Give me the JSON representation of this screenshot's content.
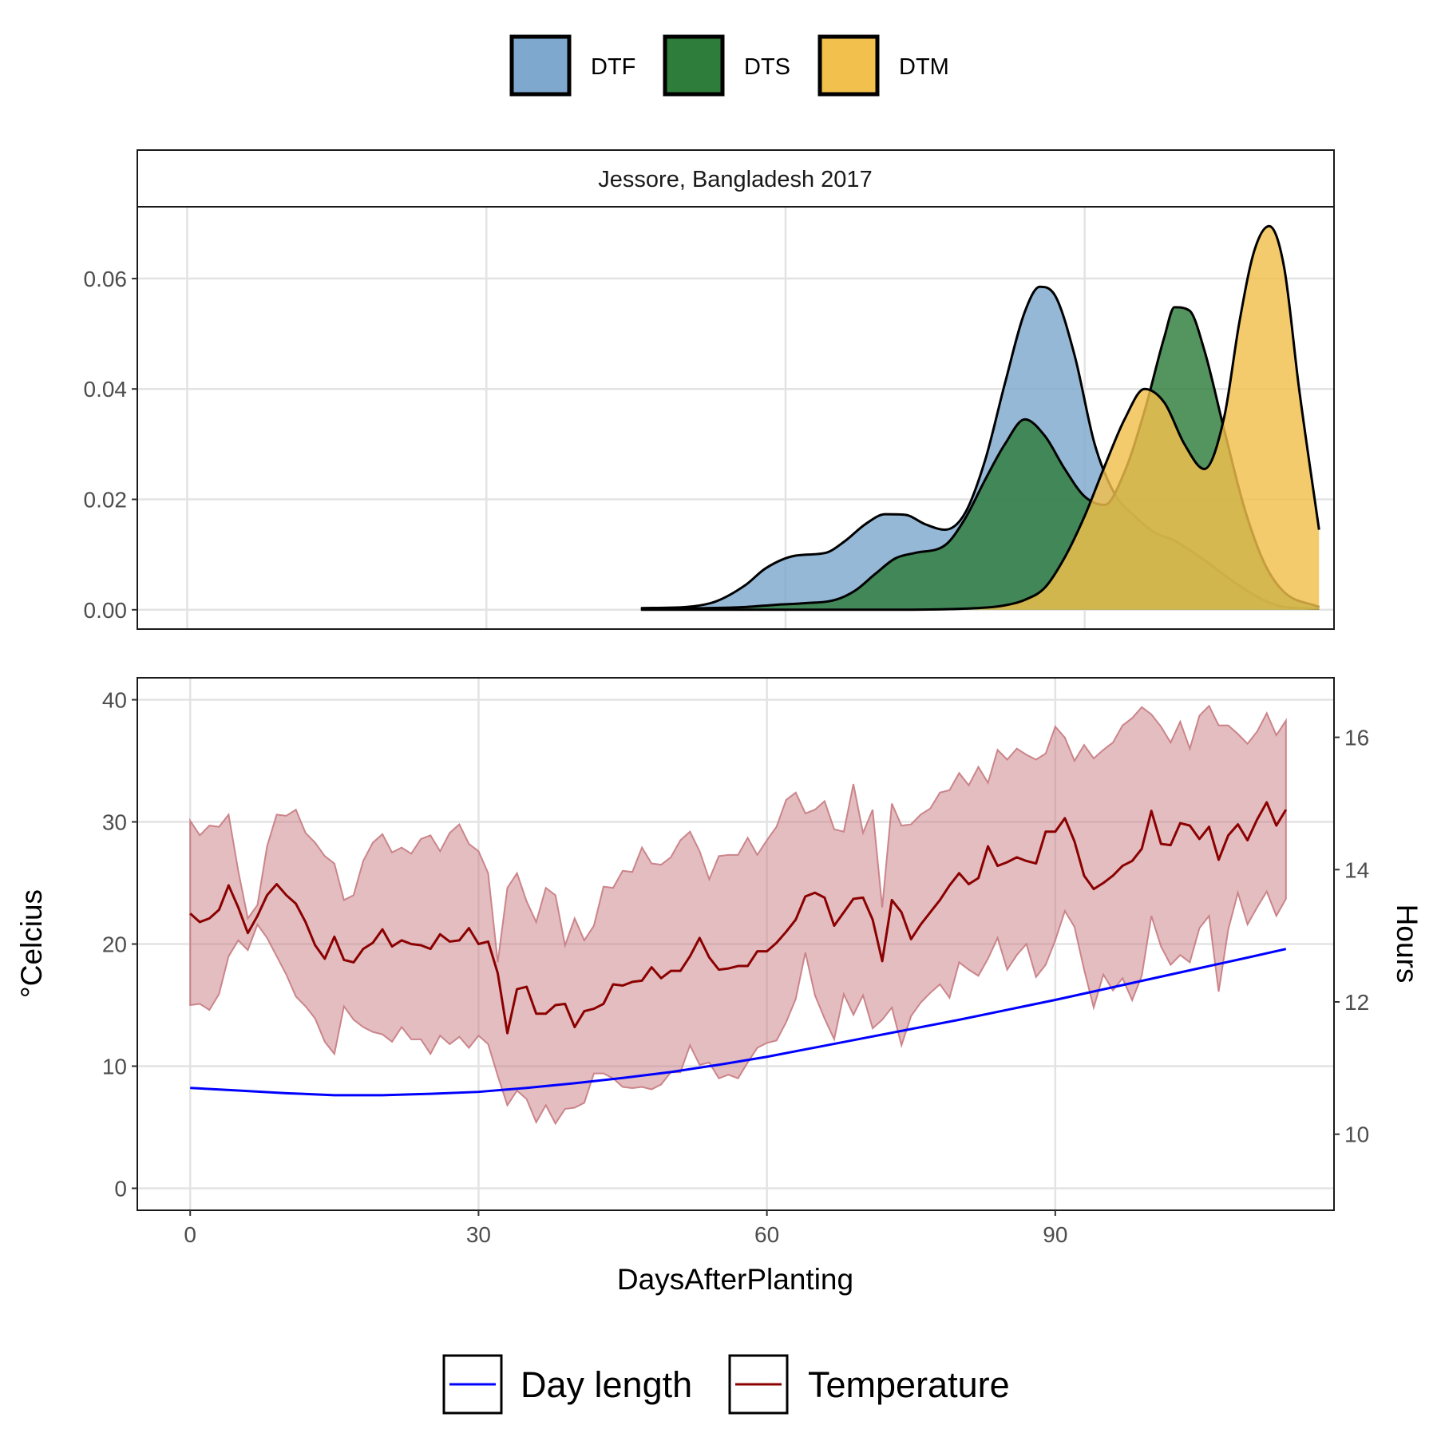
{
  "chart_data": [
    {
      "type": "area",
      "panel_title": "Jessore, Bangladesh 2017",
      "xlabel": "",
      "ylabel": "",
      "xlim": [
        -5,
        115
      ],
      "ylim": [
        -0.0035,
        0.073
      ],
      "xticks": [
        0,
        30,
        60,
        90
      ],
      "yticks": [
        0.0,
        0.02,
        0.04,
        0.06
      ],
      "ytick_labels": [
        "0.00",
        "0.02",
        "0.04",
        "0.06"
      ],
      "grid": true,
      "legend_position": "top",
      "series": [
        {
          "name": "DTF",
          "color": "#7ea8cd",
          "x": [
            45.5,
            50,
            53,
            56,
            58,
            61,
            64,
            66,
            68,
            70,
            72,
            74,
            76,
            78,
            80,
            82,
            84,
            85.5,
            87,
            89,
            91,
            93,
            95,
            97,
            99,
            102,
            105,
            108,
            110,
            113.5
          ],
          "values": [
            0.0003,
            0.0005,
            0.0015,
            0.0045,
            0.0075,
            0.0098,
            0.0103,
            0.0125,
            0.0155,
            0.0173,
            0.0172,
            0.0155,
            0.0145,
            0.0175,
            0.027,
            0.041,
            0.054,
            0.0585,
            0.057,
            0.046,
            0.03,
            0.021,
            0.017,
            0.014,
            0.0125,
            0.009,
            0.005,
            0.0017,
            0.0005,
            0.0002
          ]
        },
        {
          "name": "DTS",
          "color": "#2e7d3a",
          "x": [
            45.5,
            52,
            56,
            59,
            62,
            65,
            67,
            69,
            71,
            73,
            76,
            78,
            80,
            82,
            84,
            86,
            88,
            90,
            92,
            94,
            96,
            98,
            99,
            100.5,
            102,
            104,
            106,
            108,
            110,
            113.5
          ],
          "values": [
            0.0002,
            0.0003,
            0.0005,
            0.0009,
            0.0012,
            0.0018,
            0.0035,
            0.0065,
            0.0093,
            0.0103,
            0.0117,
            0.0165,
            0.0235,
            0.03,
            0.0345,
            0.0315,
            0.0255,
            0.0205,
            0.019,
            0.025,
            0.036,
            0.0495,
            0.0548,
            0.0542,
            0.047,
            0.0325,
            0.0185,
            0.0085,
            0.0032,
            0.0005
          ]
        },
        {
          "name": "DTM",
          "color": "#f2c04c",
          "x": [
            45.5,
            70,
            78,
            82,
            84,
            86,
            88,
            90,
            92,
            94,
            96,
            98,
            100,
            102,
            104,
            105.5,
            107,
            108.5,
            110,
            111.5,
            113.5
          ],
          "values": [
            0.0,
            0.0,
            0.0002,
            0.0008,
            0.0018,
            0.004,
            0.0095,
            0.017,
            0.026,
            0.0345,
            0.04,
            0.0375,
            0.03,
            0.0255,
            0.035,
            0.052,
            0.065,
            0.0695,
            0.062,
            0.04,
            0.0145
          ]
        }
      ]
    },
    {
      "type": "line",
      "xlabel": "DaysAfterPlanting",
      "ylabel": "°Celcius",
      "y2label": "Hours",
      "xlim": [
        -5.5,
        119
      ],
      "ylim": [
        -1.8,
        41.8
      ],
      "y2lim": [
        8.85,
        16.9
      ],
      "xticks": [
        0,
        30,
        60,
        90
      ],
      "yticks": [
        0,
        10,
        20,
        30,
        40
      ],
      "y2ticks": [
        10,
        12,
        14,
        16
      ],
      "grid": true,
      "legend_position": "bottom",
      "temperature_x": [
        0,
        1,
        2,
        3,
        4,
        5,
        6,
        7,
        8,
        9,
        10,
        11,
        12,
        13,
        14,
        15,
        16,
        17,
        18,
        19,
        20,
        21,
        22,
        23,
        24,
        25,
        26,
        27,
        28,
        29,
        30,
        31,
        32,
        33,
        34,
        35,
        36,
        37,
        38,
        39,
        40,
        41,
        42,
        43,
        44,
        45,
        46,
        47,
        48,
        49,
        50,
        51,
        52,
        53,
        54,
        55,
        56,
        57,
        58,
        59,
        60,
        61,
        62,
        63,
        64,
        65,
        66,
        67,
        68,
        69,
        70,
        71,
        72,
        73,
        74,
        75,
        76,
        77,
        78,
        79,
        80,
        81,
        82,
        83,
        84,
        85,
        86,
        87,
        88,
        89,
        90,
        91,
        92,
        93,
        94,
        95,
        96,
        97,
        98,
        99,
        100,
        101,
        102,
        103,
        104,
        105,
        106,
        107,
        108,
        109,
        110,
        111,
        112,
        113,
        114
      ],
      "series": [
        {
          "name": "Temperature",
          "color": "#8b0000",
          "ribbon_color": "#c77b81",
          "values": [
            22.5,
            21.8,
            22.1,
            22.8,
            24.8,
            23.0,
            20.9,
            22.3,
            24.0,
            24.9,
            24.0,
            23.3,
            21.8,
            19.9,
            18.8,
            20.6,
            18.7,
            18.5,
            19.6,
            20.1,
            21.2,
            19.8,
            20.3,
            20.0,
            19.9,
            19.6,
            20.8,
            20.2,
            20.3,
            21.3,
            20.0,
            20.2,
            17.6,
            12.7,
            16.3,
            16.5,
            14.3,
            14.3,
            15.0,
            15.1,
            13.2,
            14.5,
            14.7,
            15.1,
            16.7,
            16.6,
            16.9,
            17.0,
            18.1,
            17.2,
            17.8,
            17.8,
            19.0,
            20.5,
            18.9,
            17.9,
            18.0,
            18.2,
            18.2,
            19.4,
            19.4,
            20.1,
            21.0,
            22.0,
            23.9,
            24.2,
            23.8,
            21.5,
            22.6,
            23.7,
            23.8,
            22.0,
            18.6,
            23.6,
            22.6,
            20.4,
            21.6,
            22.6,
            23.6,
            24.8,
            25.8,
            24.9,
            25.4,
            28.0,
            26.4,
            26.7,
            27.1,
            26.8,
            26.6,
            29.2,
            29.2,
            30.3,
            28.4,
            25.6,
            24.5,
            25.0,
            25.6,
            26.4,
            26.8,
            27.8,
            30.9,
            28.2,
            28.1,
            29.9,
            29.7,
            28.6,
            29.6,
            26.9,
            28.9,
            29.8,
            28.5,
            30.2,
            31.6,
            29.7,
            31.0,
            29.9
          ],
          "ribbon_low": [
            15.0,
            15.1,
            14.6,
            15.9,
            19.0,
            20.3,
            19.5,
            21.6,
            20.5,
            19.0,
            17.5,
            15.7,
            14.9,
            13.9,
            12.0,
            11.0,
            14.9,
            13.8,
            13.2,
            12.8,
            12.6,
            12.0,
            13.2,
            12.2,
            12.2,
            11.0,
            12.5,
            11.8,
            12.4,
            11.5,
            12.5,
            11.8,
            9.2,
            6.8,
            8.0,
            7.3,
            5.4,
            6.8,
            5.3,
            6.5,
            6.6,
            7.0,
            9.4,
            9.4,
            9.0,
            8.3,
            8.2,
            8.3,
            8.1,
            8.5,
            9.5,
            9.5,
            11.7,
            10.1,
            10.3,
            9.0,
            9.3,
            9.0,
            10.3,
            11.5,
            11.9,
            12.1,
            13.6,
            15.5,
            19.3,
            15.8,
            13.9,
            12.2,
            15.9,
            14.2,
            15.8,
            13.1,
            13.8,
            14.8,
            11.7,
            14.1,
            15.2,
            16.0,
            16.7,
            15.6,
            18.5,
            17.9,
            17.4,
            18.8,
            20.5,
            17.9,
            19.1,
            20.0,
            17.3,
            18.3,
            20.3,
            22.7,
            21.4,
            17.9,
            14.8,
            17.5,
            16.2,
            17.2,
            15.4,
            17.4,
            22.3,
            19.8,
            18.3,
            19.1,
            18.5,
            21.3,
            22.3,
            16.1,
            21.2,
            24.2,
            21.6,
            23.0,
            24.3,
            22.3,
            23.7,
            23.4
          ],
          "ribbon_high": [
            30.1,
            28.9,
            29.7,
            29.6,
            30.6,
            26.0,
            22.1,
            23.2,
            28.0,
            30.6,
            30.5,
            31.0,
            29.1,
            28.3,
            27.2,
            26.6,
            23.6,
            24.0,
            26.8,
            28.3,
            29.0,
            27.5,
            27.9,
            27.4,
            28.6,
            28.9,
            27.6,
            29.1,
            29.8,
            28.2,
            27.6,
            25.8,
            18.5,
            24.6,
            25.8,
            23.5,
            21.8,
            24.6,
            24.0,
            19.9,
            22.1,
            20.3,
            21.5,
            24.7,
            24.6,
            26.0,
            25.9,
            27.9,
            26.6,
            26.5,
            27.1,
            28.5,
            29.2,
            27.6,
            25.3,
            27.2,
            27.3,
            27.3,
            28.7,
            27.3,
            28.5,
            29.6,
            31.8,
            32.4,
            30.7,
            31.0,
            31.7,
            29.4,
            29.2,
            33.1,
            29.1,
            31.0,
            23.0,
            31.5,
            29.7,
            29.8,
            30.6,
            31.1,
            32.4,
            32.6,
            34.0,
            33.0,
            34.5,
            33.2,
            35.9,
            35.1,
            36.0,
            35.5,
            35.1,
            35.6,
            37.8,
            36.9,
            35.0,
            36.3,
            35.2,
            35.9,
            36.5,
            37.9,
            38.5,
            39.4,
            38.8,
            37.8,
            36.5,
            38.2,
            36.0,
            38.7,
            39.5,
            37.9,
            37.9,
            37.2,
            36.4,
            37.4,
            38.9,
            37.1,
            38.3,
            36.5
          ],
          "ribbon_high_tail": 36.5
        },
        {
          "name": "Day length",
          "color": "#0000ff",
          "axis": "right",
          "x": [
            0,
            5,
            10,
            15,
            20,
            25,
            30,
            35,
            40,
            45,
            50,
            55,
            60,
            65,
            70,
            75,
            80,
            85,
            90,
            95,
            100,
            105,
            110,
            114
          ],
          "values": [
            10.7,
            10.66,
            10.62,
            10.59,
            10.59,
            10.61,
            10.64,
            10.7,
            10.77,
            10.85,
            10.94,
            11.05,
            11.17,
            11.31,
            11.45,
            11.59,
            11.73,
            11.88,
            12.03,
            12.19,
            12.35,
            12.51,
            12.67,
            12.8
          ]
        }
      ]
    }
  ],
  "legend_top": {
    "items": [
      {
        "label": "DTF",
        "color": "#7ea8cd"
      },
      {
        "label": "DTS",
        "color": "#2e7d3a"
      },
      {
        "label": "DTM",
        "color": "#f2c04c"
      }
    ]
  },
  "legend_bottom": {
    "items": [
      {
        "label": "Day length",
        "color": "#0000ff"
      },
      {
        "label": "Temperature",
        "color": "#8b0000"
      }
    ]
  }
}
